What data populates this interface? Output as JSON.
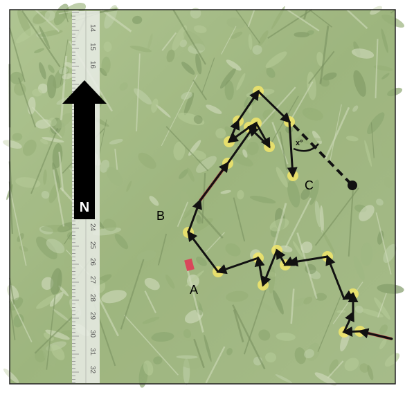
{
  "figure": {
    "north_label": "N",
    "point_labels": {
      "a": "A",
      "b": "B",
      "c": "C"
    },
    "angle_label": "x°",
    "ruler_ticks": [
      "14",
      "15",
      "16",
      "24",
      "25",
      "26",
      "27",
      "28",
      "29",
      "30",
      "31",
      "32"
    ]
  },
  "colors": {
    "background_grass": "#8fa96a",
    "path": "#111111",
    "marker": "#f2e66a",
    "red_segment": "#b8323a",
    "arrow": "#000000"
  }
}
